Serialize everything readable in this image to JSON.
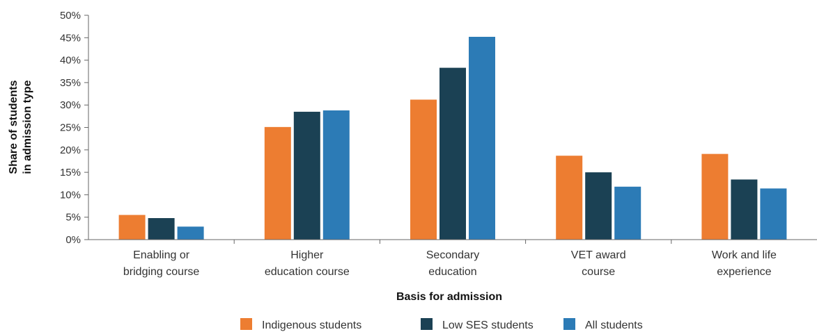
{
  "chart_data": {
    "type": "bar",
    "xlabel": "Basis for admission",
    "ylabel": [
      "Share of students",
      "in admission type"
    ],
    "ylim": [
      0,
      50
    ],
    "y_tick_step": 5,
    "y_tick_suffix": "%",
    "grid": false,
    "legend_position": "bottom",
    "categories": [
      [
        "Enabling or",
        "bridging course"
      ],
      [
        "Higher",
        "education course"
      ],
      [
        "Secondary",
        "education"
      ],
      [
        "VET award",
        "course"
      ],
      [
        "Work and life",
        "experience"
      ]
    ],
    "series": [
      {
        "name": "Indigenous students",
        "color": "#ED7D31",
        "values": [
          5.5,
          25.1,
          31.2,
          18.7,
          19.1
        ]
      },
      {
        "name": "Low SES students",
        "color": "#1B4154",
        "values": [
          4.8,
          28.5,
          38.3,
          15.0,
          13.4
        ]
      },
      {
        "name": "All students",
        "color": "#2C7BB6",
        "values": [
          2.9,
          28.8,
          45.2,
          11.8,
          11.4
        ]
      }
    ]
  }
}
